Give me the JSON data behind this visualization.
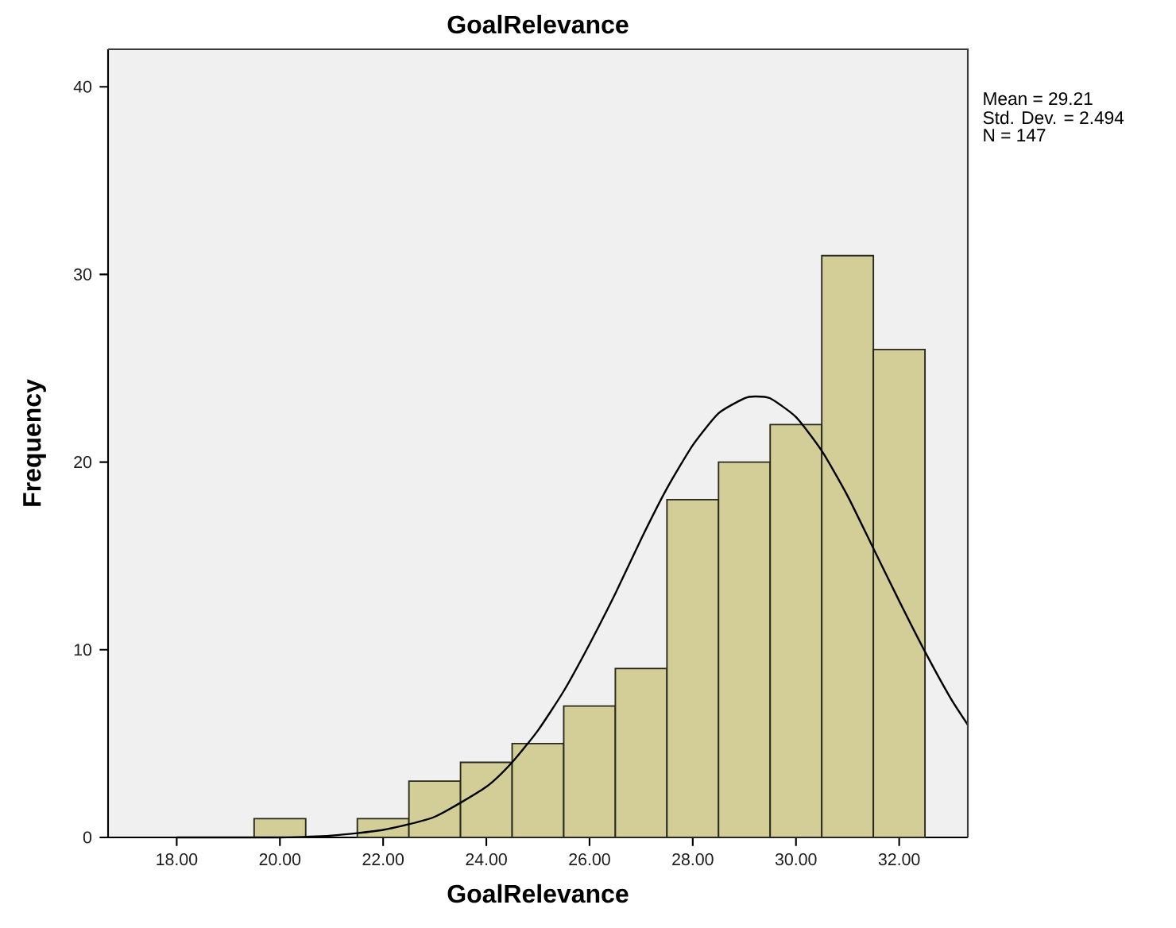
{
  "chart_data": {
    "type": "histogram",
    "title": "GoalRelevance",
    "xlabel": "GoalRelevance",
    "ylabel": "Frequency",
    "bins": [
      19.5,
      20.5,
      21.5,
      22.5,
      23.5,
      24.5,
      25.5,
      26.5,
      27.5,
      28.5,
      29.5,
      30.5,
      31.5,
      32.5
    ],
    "values": [
      1,
      0,
      1,
      3,
      4,
      5,
      7,
      9,
      18,
      20,
      22,
      31,
      26
    ],
    "color": "#d3ce97",
    "series": [
      {
        "type": "line",
        "color": "#000000",
        "x": [
          18,
          19,
          20,
          21,
          22,
          23,
          24,
          24.5,
          25,
          25.5,
          26,
          26.5,
          27,
          27.5,
          28,
          28.5,
          29,
          29.21,
          29.5,
          30,
          30.5,
          31,
          31.5,
          32,
          32.5,
          33,
          33.33
        ],
        "values": [
          0.0,
          0.0,
          0.0,
          0.1,
          0.4,
          1.1,
          2.7,
          4.0,
          5.7,
          7.8,
          10.3,
          13.0,
          15.9,
          18.6,
          20.9,
          22.6,
          23.4,
          23.5,
          23.4,
          22.4,
          20.6,
          18.2,
          15.4,
          12.6,
          9.9,
          7.4,
          6.0
        ]
      }
    ],
    "xlim": [
      16.67,
      33.33
    ],
    "ylim": [
      0,
      42
    ],
    "xticks": [
      {
        "value": 18,
        "label": "18.00"
      },
      {
        "value": 20,
        "label": "20.00"
      },
      {
        "value": 22,
        "label": "22.00"
      },
      {
        "value": 24,
        "label": "24.00"
      },
      {
        "value": 26,
        "label": "26.00"
      },
      {
        "value": 28,
        "label": "28.00"
      },
      {
        "value": 30,
        "label": "30.00"
      },
      {
        "value": 32,
        "label": "32.00"
      }
    ],
    "yticks": [
      0,
      10,
      20,
      30,
      40
    ],
    "annotations": [
      "Mean = 29.21",
      "Std. Dev. = 2.494",
      "N = 147"
    ]
  }
}
